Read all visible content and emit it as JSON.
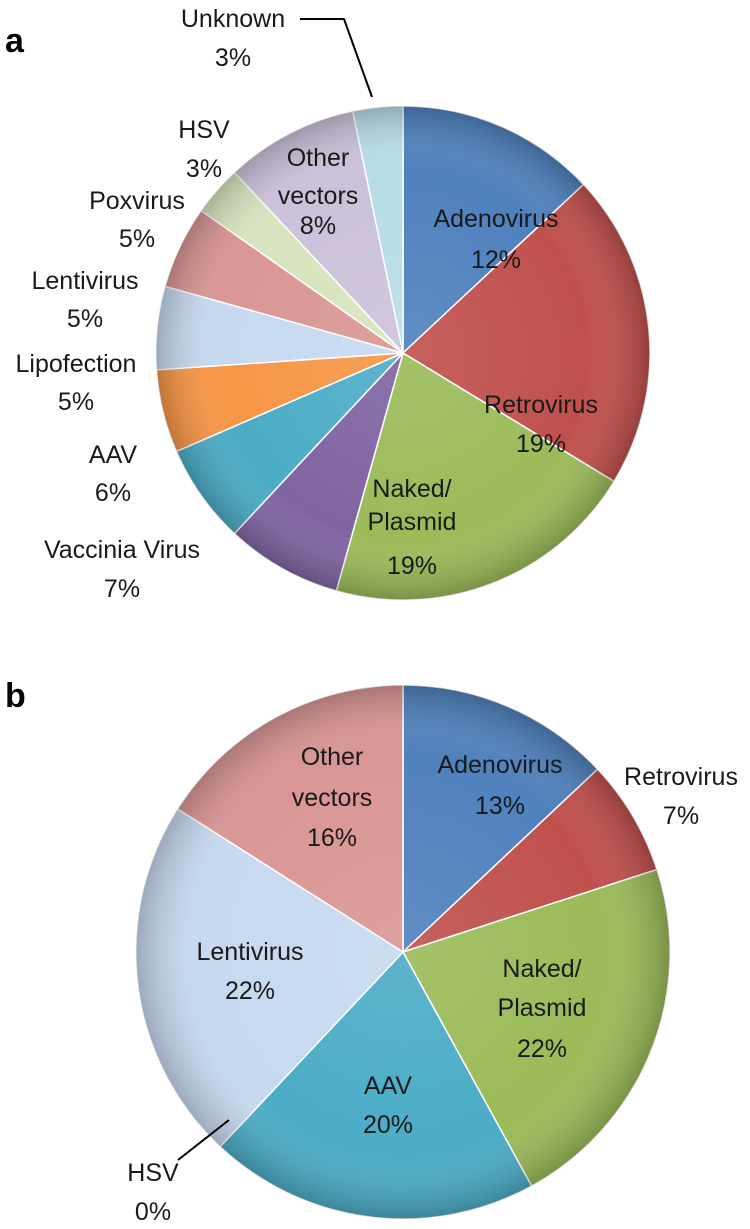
{
  "chart_data": [
    {
      "type": "pie",
      "panel": "a",
      "slices": [
        {
          "label": "Adenovirus",
          "value": 12,
          "value_label": "12%",
          "color": "#4f81bd"
        },
        {
          "label": "Retrovirus",
          "value": 19,
          "value_label": "19%",
          "color": "#c0504d"
        },
        {
          "label": "Naked/ Plasmid",
          "value": 19,
          "value_label": "19%",
          "color": "#9bbb59"
        },
        {
          "label": "Vaccinia Virus",
          "value": 7,
          "value_label": "7%",
          "color": "#8064a2"
        },
        {
          "label": "AAV",
          "value": 6,
          "value_label": "6%",
          "color": "#4bacc6"
        },
        {
          "label": "Lipofection",
          "value": 5,
          "value_label": "5%",
          "color": "#f79646"
        },
        {
          "label": "Lentivirus",
          "value": 5,
          "value_label": "5%",
          "color": "#c6d9f0"
        },
        {
          "label": "Poxvirus",
          "value": 5,
          "value_label": "5%",
          "color": "#d99694"
        },
        {
          "label": "HSV",
          "value": 3,
          "value_label": "3%",
          "color": "#d7e4bd"
        },
        {
          "label": "Other vectors",
          "value": 8,
          "value_label": "8%",
          "color": "#ccc1da"
        },
        {
          "label": "Unknown",
          "value": 3,
          "value_label": "3%",
          "color": "#b7dde8"
        }
      ]
    },
    {
      "type": "pie",
      "panel": "b",
      "slices": [
        {
          "label": "Adenovirus",
          "value": 13,
          "value_label": "13%",
          "color": "#4f81bd"
        },
        {
          "label": "Retrovirus",
          "value": 7,
          "value_label": "7%",
          "color": "#c0504d"
        },
        {
          "label": "Naked/ Plasmid",
          "value": 22,
          "value_label": "22%",
          "color": "#9bbb59"
        },
        {
          "label": "AAV",
          "value": 20,
          "value_label": "20%",
          "color": "#4bacc6"
        },
        {
          "label": "HSV",
          "value": 0,
          "value_label": "0%",
          "color": "#d7e4bd"
        },
        {
          "label": "Lentivirus",
          "value": 22,
          "value_label": "22%",
          "color": "#c6d9f0"
        },
        {
          "label": "Other vectors",
          "value": 16,
          "value_label": "16%",
          "color": "#d99694"
        }
      ]
    }
  ]
}
